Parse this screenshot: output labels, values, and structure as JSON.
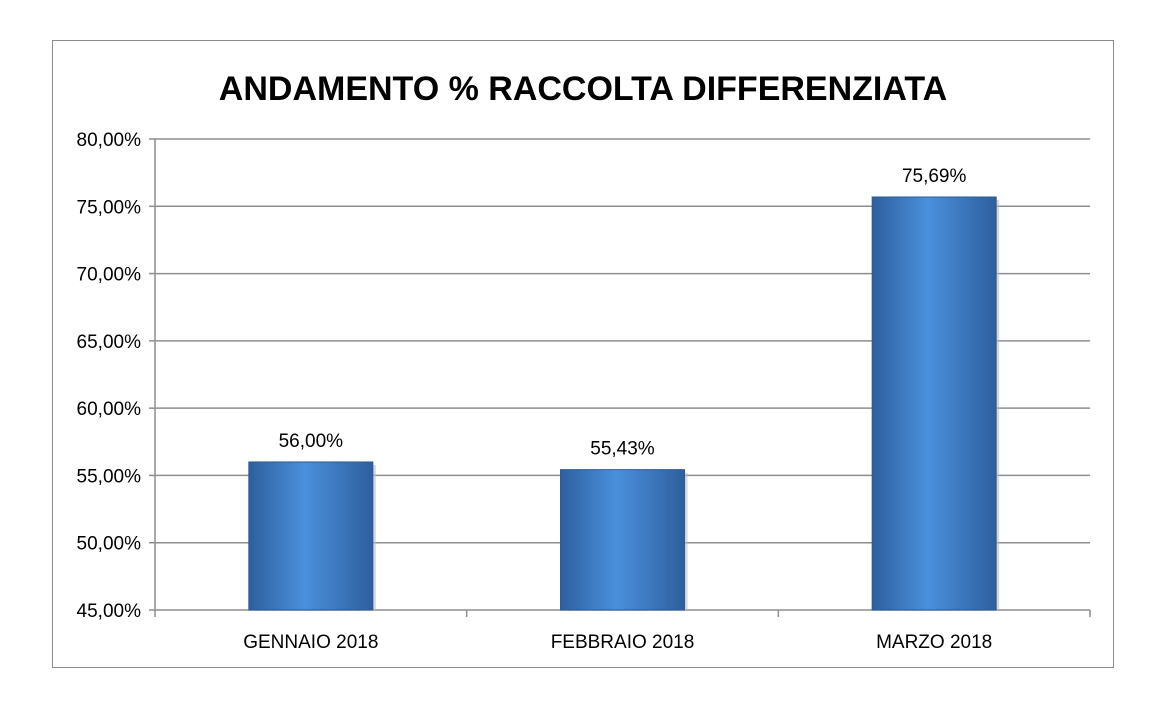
{
  "chart_data": {
    "type": "bar",
    "title": "ANDAMENTO % RACCOLTA DIFFERENZIATA",
    "categories": [
      "GENNAIO 2018",
      "FEBBRAIO 2018",
      "MARZO 2018"
    ],
    "values": [
      56.0,
      55.43,
      75.69
    ],
    "value_labels": [
      "56,00%",
      "55,43%",
      "75,69%"
    ],
    "ylim": [
      45,
      80
    ],
    "y_ticks": [
      45,
      50,
      55,
      60,
      65,
      70,
      75,
      80
    ],
    "y_tick_labels": [
      "45,00%",
      "50,00%",
      "55,00%",
      "60,00%",
      "65,00%",
      "70,00%",
      "75,00%",
      "80,00%"
    ],
    "grid": true,
    "legend": "none",
    "bar_color": "#3f7fc9",
    "bar_color_light": "#4a90dc",
    "bar_color_dark": "#2e5f9e"
  }
}
